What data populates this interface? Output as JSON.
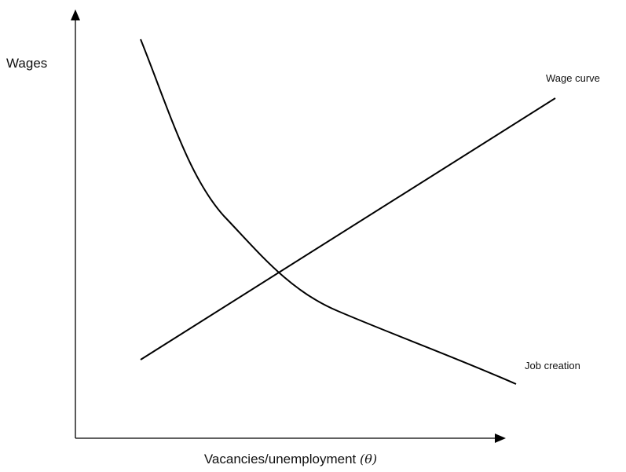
{
  "axes": {
    "y_label": "Wages",
    "x_label": "Vacancies/unemployment",
    "x_symbol": "(θ)"
  },
  "curves": [
    {
      "label": "Wage curve"
    },
    {
      "label": "Job creation"
    }
  ]
}
